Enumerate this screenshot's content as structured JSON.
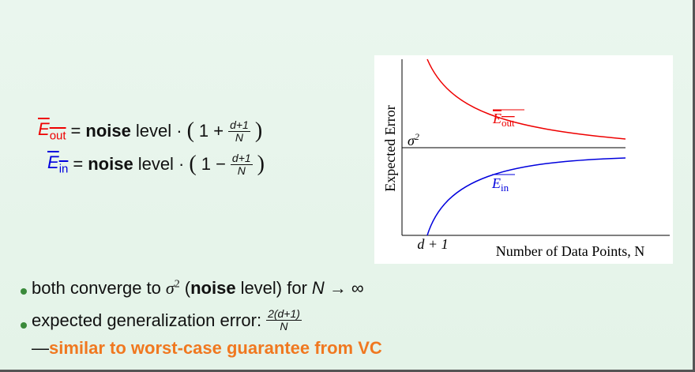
{
  "equations": [
    {
      "lhs": "E",
      "lhs_sub": "out",
      "eq": "=",
      "bold": "noise",
      "text": "level ·",
      "open": "(",
      "sign": "1 +",
      "num": "d+1",
      "den": "N",
      "close": ")"
    },
    {
      "lhs": "E",
      "lhs_sub": "in",
      "eq": "=",
      "bold": "noise",
      "text": "level ·",
      "open": "(",
      "sign": "1 −",
      "num": "d+1",
      "den": "N",
      "close": ")"
    }
  ],
  "figure": {
    "ylabel": "Expected Error",
    "xlabel": "Number of Data Points, N",
    "xtick": "d + 1",
    "sigma": "σ",
    "sigma_sup": "2",
    "out_label": "E",
    "out_sub": "out",
    "in_label": "E",
    "in_sub": "in"
  },
  "bullets": [
    {
      "t1": "both converge to",
      "sigma": "σ",
      "sup": "2",
      "t2": "(",
      "bold": "noise",
      "t3": "level) for",
      "n": "N",
      "t4": "→ ∞"
    },
    {
      "t1": "expected generalization error:",
      "num": "2(d+1)",
      "den": "N",
      "dash": "—",
      "highlight": "similar to worst-case guarantee from VC"
    }
  ]
}
